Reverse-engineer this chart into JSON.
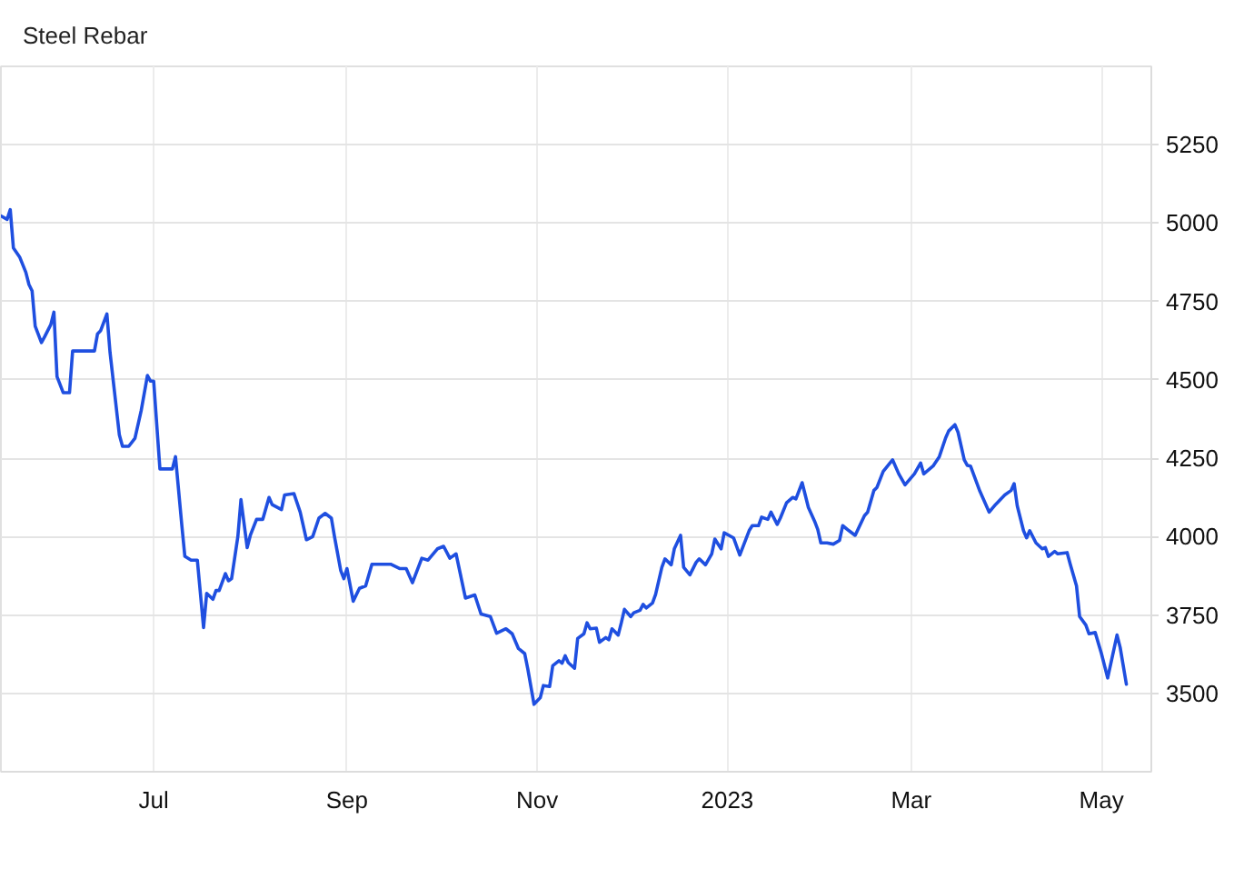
{
  "chart_data": {
    "type": "line",
    "title": "Steel Rebar",
    "x": [
      "2022-05-13",
      "2022-05-15",
      "2022-05-16",
      "2022-05-17",
      "2022-05-19",
      "2022-05-21",
      "2022-05-22",
      "2022-05-23",
      "2022-05-24",
      "2022-05-26",
      "2022-05-27",
      "2022-05-29",
      "2022-05-30",
      "2022-05-31",
      "2022-06-02",
      "2022-06-04",
      "2022-06-05",
      "2022-06-12",
      "2022-06-13",
      "2022-06-14",
      "2022-06-16",
      "2022-06-17",
      "2022-06-20",
      "2022-06-21",
      "2022-06-23",
      "2022-06-25",
      "2022-06-27",
      "2022-06-29",
      "2022-06-30",
      "2022-07-01",
      "2022-07-03",
      "2022-07-07",
      "2022-07-08",
      "2022-07-10",
      "2022-07-11",
      "2022-07-13",
      "2022-07-15",
      "2022-07-17",
      "2022-07-18",
      "2022-07-20",
      "2022-07-21",
      "2022-07-22",
      "2022-07-24",
      "2022-07-25",
      "2022-07-26",
      "2022-07-28",
      "2022-07-29",
      "2022-07-31",
      "2022-08-01",
      "2022-08-03",
      "2022-08-05",
      "2022-08-07",
      "2022-08-08",
      "2022-08-11",
      "2022-08-12",
      "2022-08-15",
      "2022-08-17",
      "2022-08-19",
      "2022-08-21",
      "2022-08-23",
      "2022-08-25",
      "2022-08-27",
      "2022-08-28",
      "2022-08-30",
      "2022-08-31",
      "2022-09-01",
      "2022-09-03",
      "2022-09-05",
      "2022-09-07",
      "2022-09-09",
      "2022-09-15",
      "2022-09-18",
      "2022-09-20",
      "2022-09-22",
      "2022-09-25",
      "2022-09-27",
      "2022-09-30",
      "2022-10-02",
      "2022-10-04",
      "2022-10-06",
      "2022-10-09",
      "2022-10-12",
      "2022-10-14",
      "2022-10-17",
      "2022-10-19",
      "2022-10-22",
      "2022-10-24",
      "2022-10-26",
      "2022-10-28",
      "2022-10-29",
      "2022-10-31",
      "2022-11-02",
      "2022-11-03",
      "2022-11-05",
      "2022-11-06",
      "2022-11-08",
      "2022-11-09",
      "2022-11-10",
      "2022-11-11",
      "2022-11-13",
      "2022-11-14",
      "2022-11-16",
      "2022-11-17",
      "2022-11-18",
      "2022-11-20",
      "2022-11-21",
      "2022-11-23",
      "2022-11-24",
      "2022-11-25",
      "2022-11-27",
      "2022-11-28",
      "2022-11-29",
      "2022-12-01",
      "2022-12-02",
      "2022-12-04",
      "2022-12-05",
      "2022-12-06",
      "2022-12-08",
      "2022-12-09",
      "2022-12-11",
      "2022-12-12",
      "2022-12-14",
      "2022-12-15",
      "2022-12-17",
      "2022-12-18",
      "2022-12-20",
      "2022-12-22",
      "2022-12-23",
      "2022-12-25",
      "2022-12-27",
      "2022-12-28",
      "2022-12-30",
      "2022-12-31",
      "2023-01-03",
      "2023-01-05",
      "2023-01-08",
      "2023-01-09",
      "2023-01-11",
      "2023-01-12",
      "2023-01-14",
      "2023-01-15",
      "2023-01-17",
      "2023-01-18",
      "2023-01-20",
      "2023-01-22",
      "2023-01-23",
      "2023-01-25",
      "2023-01-27",
      "2023-01-29",
      "2023-01-30",
      "2023-01-31",
      "2023-02-02",
      "2023-02-04",
      "2023-02-06",
      "2023-02-07",
      "2023-02-09",
      "2023-02-11",
      "2023-02-14",
      "2023-02-15",
      "2023-02-17",
      "2023-02-18",
      "2023-02-20",
      "2023-02-23",
      "2023-02-25",
      "2023-02-27",
      "2023-03-02",
      "2023-03-04",
      "2023-03-05",
      "2023-03-08",
      "2023-03-10",
      "2023-03-12",
      "2023-03-13",
      "2023-03-15",
      "2023-03-16",
      "2023-03-18",
      "2023-03-19",
      "2023-03-20",
      "2023-03-23",
      "2023-03-26",
      "2023-03-28",
      "2023-03-31",
      "2023-04-02",
      "2023-04-03",
      "2023-04-04",
      "2023-04-06",
      "2023-04-07",
      "2023-04-08",
      "2023-04-10",
      "2023-04-12",
      "2023-04-13",
      "2023-04-14",
      "2023-04-16",
      "2023-04-17",
      "2023-04-20",
      "2023-04-21",
      "2023-04-23",
      "2023-04-24",
      "2023-04-26",
      "2023-04-27",
      "2023-04-29",
      "2023-05-01",
      "2023-05-03",
      "2023-05-06",
      "2023-05-07",
      "2023-05-09"
    ],
    "series": [
      {
        "color": "#1f4fe0",
        "values": [
          5023,
          5012,
          5043,
          4921,
          4892,
          4843,
          4804,
          4784,
          4671,
          4619,
          4637,
          4676,
          4716,
          4510,
          4459,
          4459,
          4592,
          4592,
          4647,
          4657,
          4710,
          4588,
          4324,
          4288,
          4288,
          4314,
          4402,
          4514,
          4496,
          4496,
          4216,
          4216,
          4255,
          4039,
          3937,
          3925,
          3925,
          3710,
          3819,
          3800,
          3828,
          3828,
          3882,
          3859,
          3866,
          4000,
          4118,
          3965,
          4004,
          4055,
          4055,
          4125,
          4102,
          4086,
          4133,
          4137,
          4078,
          3990,
          4000,
          4059,
          4074,
          4059,
          4000,
          3892,
          3866,
          3898,
          3794,
          3835,
          3843,
          3912,
          3912,
          3898,
          3898,
          3853,
          3931,
          3925,
          3961,
          3969,
          3931,
          3945,
          3804,
          3814,
          3753,
          3745,
          3692,
          3706,
          3690,
          3643,
          3627,
          3578,
          3465,
          3486,
          3525,
          3522,
          3588,
          3604,
          3596,
          3620,
          3598,
          3580,
          3675,
          3690,
          3725,
          3706,
          3708,
          3663,
          3678,
          3671,
          3706,
          3686,
          3725,
          3768,
          3745,
          3757,
          3765,
          3784,
          3772,
          3788,
          3816,
          3902,
          3929,
          3910,
          3961,
          4004,
          3902,
          3878,
          3918,
          3929,
          3910,
          3945,
          3992,
          3961,
          4012,
          3996,
          3941,
          4019,
          4035,
          4035,
          4062,
          4055,
          4078,
          4039,
          4059,
          4108,
          4125,
          4120,
          4172,
          4093,
          4049,
          4023,
          3980,
          3980,
          3976,
          3988,
          4035,
          4019,
          4004,
          4067,
          4078,
          4147,
          4157,
          4208,
          4245,
          4200,
          4165,
          4200,
          4235,
          4200,
          4225,
          4255,
          4314,
          4337,
          4357,
          4333,
          4245,
          4227,
          4225,
          4145,
          4078,
          4102,
          4133,
          4147,
          4169,
          4098,
          4019,
          3996,
          4019,
          3980,
          3961,
          3965,
          3937,
          3953,
          3945,
          3949,
          3912,
          3843,
          3745,
          3718,
          3690,
          3694,
          3627,
          3549,
          3686,
          3647,
          3529
        ]
      }
    ],
    "xlim": [
      "2022-05-13",
      "2023-05-17"
    ],
    "ylim": [
      3250,
      5500
    ],
    "xticks": [
      {
        "value": "2022-07-01",
        "label": "Jul"
      },
      {
        "value": "2022-09-01",
        "label": "Sep"
      },
      {
        "value": "2022-11-01",
        "label": "Nov"
      },
      {
        "value": "2023-01-01",
        "label": "2023"
      },
      {
        "value": "2023-03-01",
        "label": "Mar"
      },
      {
        "value": "2023-05-01",
        "label": "May"
      }
    ],
    "yticks": [
      3500,
      3750,
      4000,
      4250,
      4500,
      4750,
      5000,
      5250
    ],
    "grid": true
  }
}
